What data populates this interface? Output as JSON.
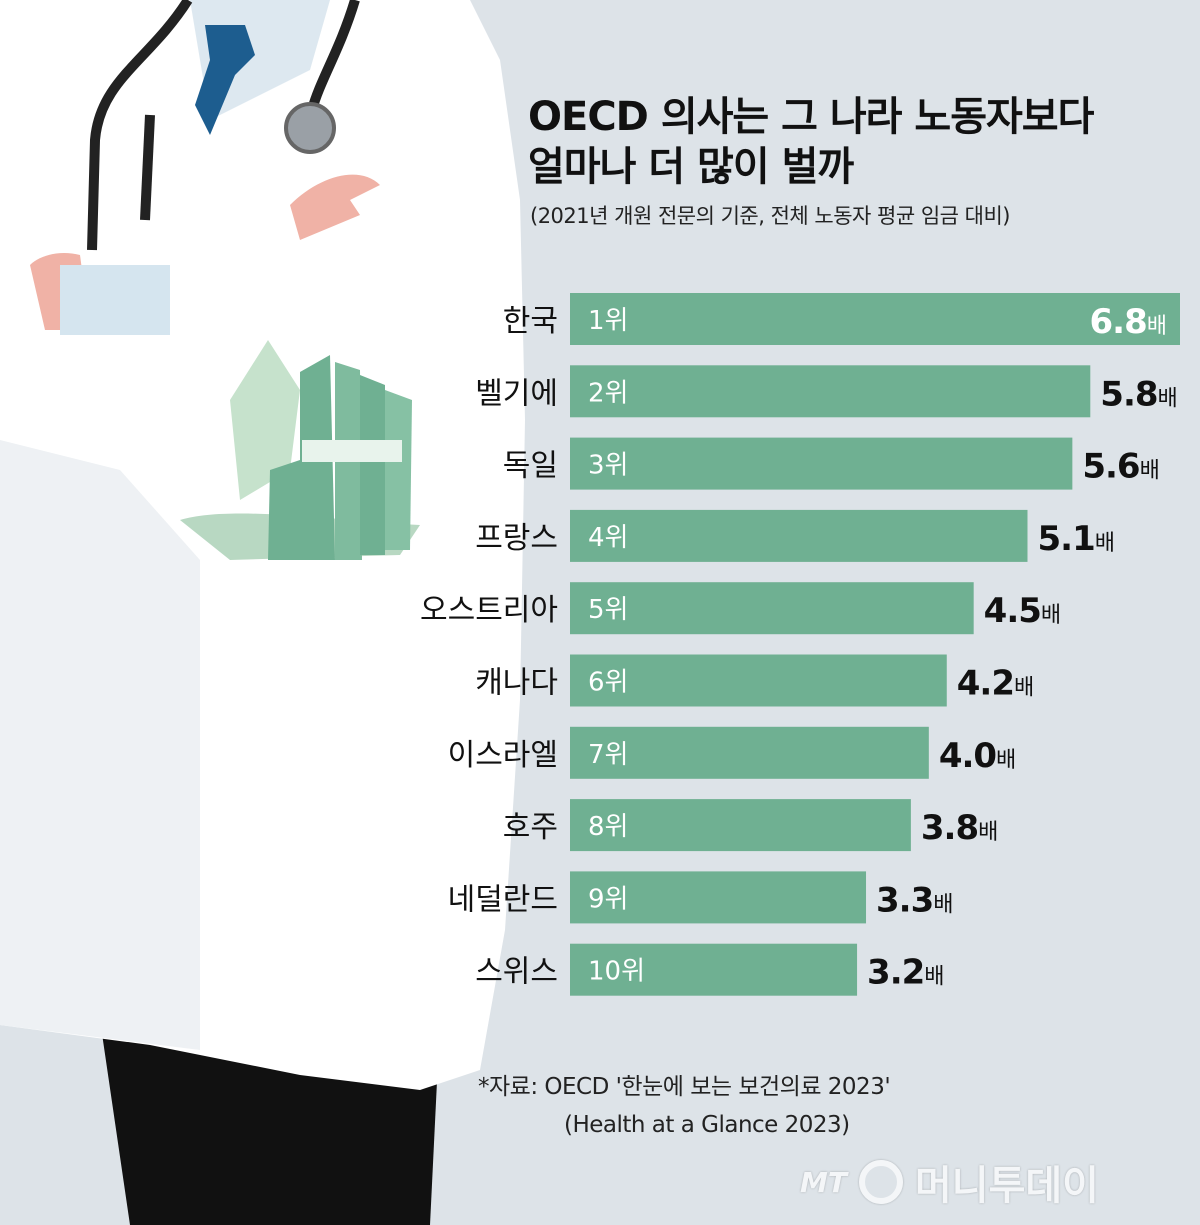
{
  "title_line1": "OECD 의사는 그 나라 노동자보다",
  "title_line2": "얼마나 더 많이 벌까",
  "subtitle": "(2021년 개원 전문의 기준, 전체 노동자 평균 임금 대비)",
  "source_line1": "*자료: OECD '한눈에 보는 보건의료 2023'",
  "source_line2": "(Health at a Glance 2023)",
  "logo": {
    "mt": "MT",
    "name": "머니투데이"
  },
  "chart_data": {
    "type": "bar",
    "orientation": "horizontal",
    "categories": [
      "한국",
      "벨기에",
      "독일",
      "프랑스",
      "오스트리아",
      "캐나다",
      "이스라엘",
      "호주",
      "네덜란드",
      "스위스"
    ],
    "ranks": [
      "1위",
      "2위",
      "3위",
      "4위",
      "5위",
      "6위",
      "7위",
      "8위",
      "9위",
      "10위"
    ],
    "values": [
      6.8,
      5.8,
      5.6,
      5.1,
      4.5,
      4.2,
      4.0,
      3.8,
      3.3,
      3.2
    ],
    "value_labels": [
      "6.8",
      "5.8",
      "5.6",
      "5.1",
      "4.5",
      "4.2",
      "4.0",
      "3.8",
      "3.3",
      "3.2"
    ],
    "unit": "배",
    "xlim": [
      0,
      6.8
    ],
    "bar_color": "#6fb092",
    "grid": false
  },
  "colors": {
    "background": "#dde3e8",
    "bar": "#6fb092",
    "coat": "#ffffff",
    "tie": "#1d5d8f",
    "skin": "#f0b2a6",
    "money": "#6fb092"
  }
}
